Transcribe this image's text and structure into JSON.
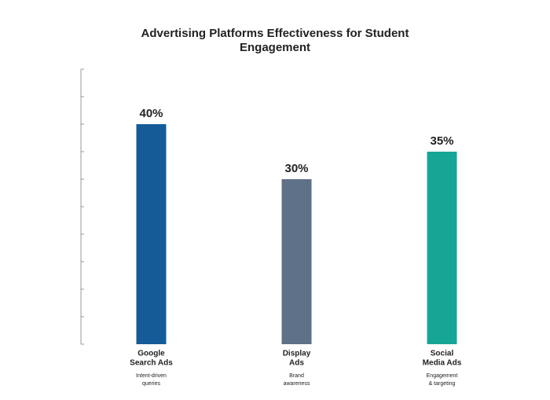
{
  "chart_data": {
    "type": "bar",
    "title": "Advertising Platforms Effectiveness for Student Engagement",
    "categories": [
      [
        "Google",
        "Search Ads"
      ],
      [
        "Display",
        "Ads"
      ],
      [
        "Social",
        "Media Ads"
      ]
    ],
    "descriptions": [
      [
        "Intent-driven",
        "queries"
      ],
      [
        "Brand",
        "awareness"
      ],
      [
        "Engagement",
        "& targeting"
      ]
    ],
    "values": [
      40,
      30,
      35
    ],
    "value_labels": [
      "40%",
      "30%",
      "35%"
    ],
    "colors": [
      "#155b98",
      "#5f7189",
      "#17a696"
    ],
    "ylim": [
      0,
      50
    ],
    "yticks": [
      0,
      5,
      10,
      15,
      20,
      25,
      30,
      35,
      40,
      45,
      50
    ]
  }
}
